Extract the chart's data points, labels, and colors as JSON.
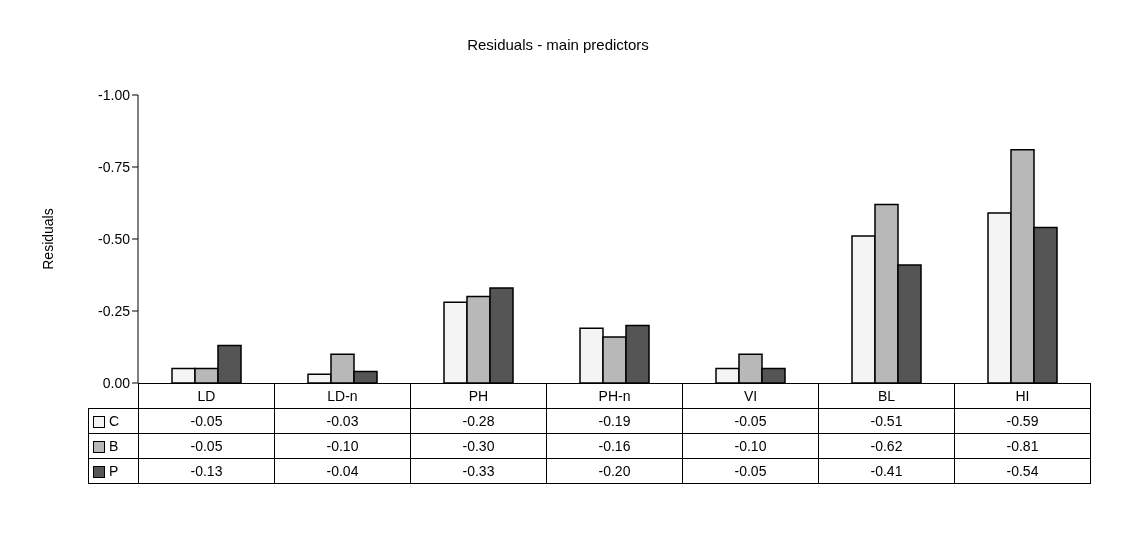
{
  "chart_data": {
    "type": "bar",
    "title": "Residuals - main predictors",
    "ylabel": "Residuals",
    "categories": [
      "LD",
      "LD-n",
      "PH",
      "PH-n",
      "VI",
      "BL",
      "HI"
    ],
    "series": [
      {
        "name": "C",
        "color": "#f4f4f4",
        "values": [
          -0.05,
          -0.03,
          -0.28,
          -0.19,
          -0.05,
          -0.51,
          -0.59
        ],
        "value_labels": [
          "-0.05",
          "-0.03",
          "-0.28",
          "-0.19",
          "-0.05",
          "-0.51",
          "-0.59"
        ]
      },
      {
        "name": "B",
        "color": "#b8b8b8",
        "values": [
          -0.05,
          -0.1,
          -0.3,
          -0.16,
          -0.1,
          -0.62,
          -0.81
        ],
        "value_labels": [
          "-0.05",
          "-0.10",
          "-0.30",
          "-0.16",
          "-0.10",
          "-0.62",
          "-0.81"
        ]
      },
      {
        "name": "P",
        "color": "#555555",
        "values": [
          -0.13,
          -0.04,
          -0.33,
          -0.2,
          -0.05,
          -0.41,
          -0.54
        ],
        "value_labels": [
          "-0.13",
          "-0.04",
          "-0.33",
          "-0.20",
          "-0.05",
          "-0.41",
          "-0.54"
        ]
      }
    ],
    "ylim": [
      0,
      -1
    ],
    "yticks": [
      {
        "value": 0,
        "label": "0.00"
      },
      {
        "value": -0.25,
        "label": "-0.25"
      },
      {
        "value": -0.5,
        "label": "-0.50"
      },
      {
        "value": -0.75,
        "label": "-0.75"
      },
      {
        "value": -1,
        "label": "-1.00"
      }
    ],
    "legend": "bottom left"
  }
}
